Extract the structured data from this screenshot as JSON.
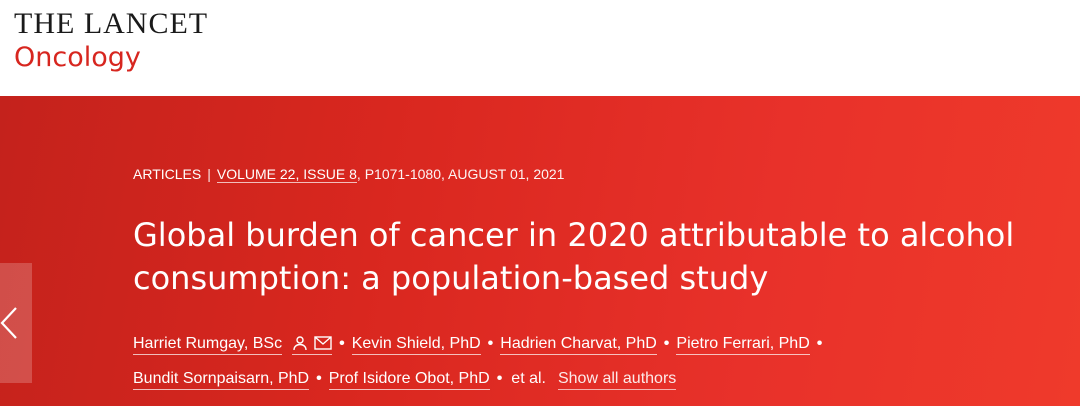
{
  "header": {
    "journal_name": "THE LANCET",
    "journal_sub": "Oncology"
  },
  "article": {
    "type": "ARTICLES",
    "issue_link": "VOLUME 22, ISSUE 8",
    "issue_rest": ", P1071-1080, AUGUST 01, 2021",
    "title_line1": "Global burden of cancer in 2020 attributable to alcohol",
    "title_line2": "consumption: a population-based study",
    "authors": [
      "Harriet Rumgay, BSc",
      "Kevin Shield, PhD",
      "Hadrien Charvat, PhD",
      "Pietro Ferrari, PhD",
      "Bundit Sornpaisarn, PhD",
      "Prof Isidore Obot, PhD"
    ],
    "et_al": "et al.",
    "show_all": "Show all authors",
    "separator": "•"
  },
  "icons": {
    "person": "person-icon",
    "mail": "mail-icon",
    "prev": "chevron-left-icon"
  },
  "colors": {
    "brand_red": "#d7261f",
    "hero_start": "#c4221c",
    "hero_end": "#ef3a2b"
  }
}
